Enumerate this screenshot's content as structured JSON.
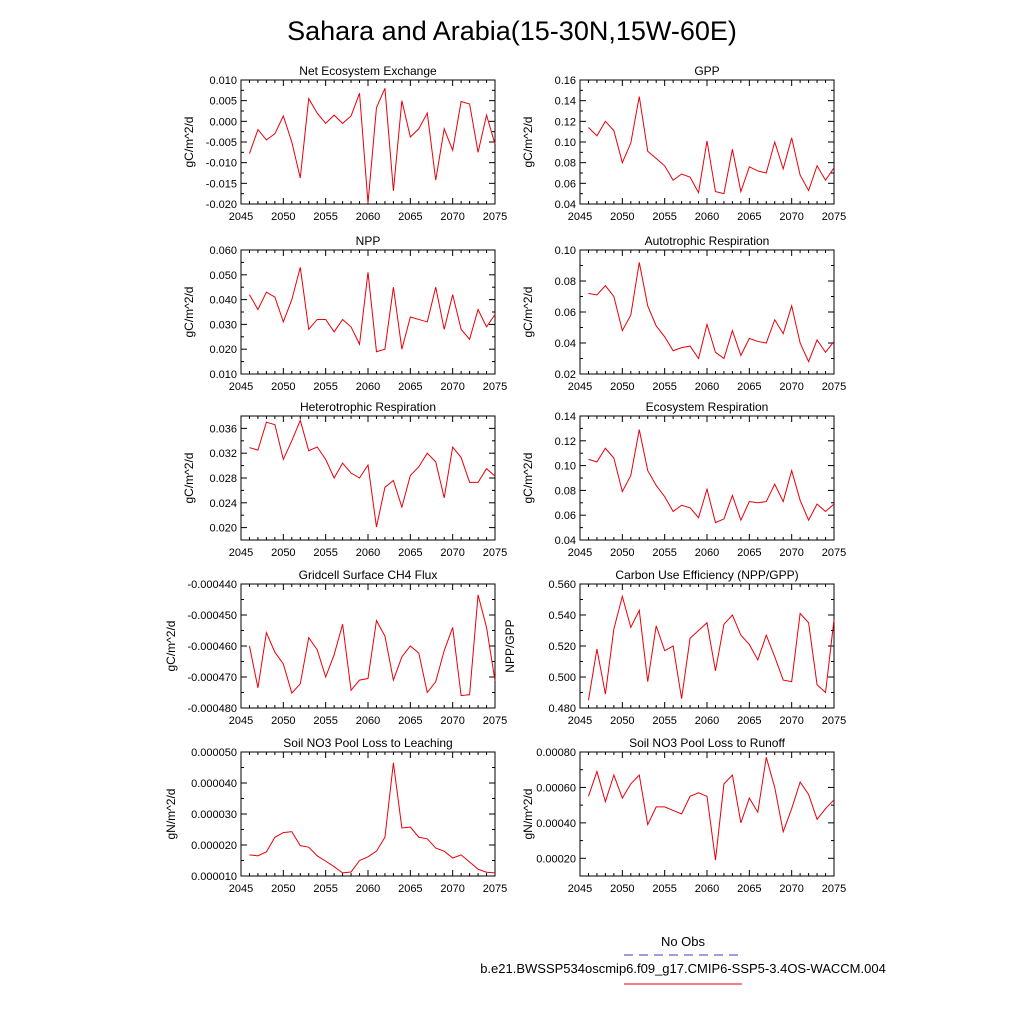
{
  "title": "Sahara and Arabia(15-30N,15W-60E)",
  "legend": {
    "entries": [
      {
        "label": "No Obs",
        "color": "#3b3bcc",
        "dash": true
      },
      {
        "label": "b.e21.BWSSP534oscmip6.f09_g17.CMIP6-SSP5-3.4OS-WACCM.004",
        "color": "#e8000b",
        "dash": false
      }
    ]
  },
  "chart_data": [
    {
      "type": "line",
      "title": "Net Ecosystem Exchange",
      "ylabel": "gC/m^2/d",
      "xlim": [
        2045,
        2075
      ],
      "ylim": [
        -0.02,
        0.01
      ],
      "xticks": [
        2045,
        2050,
        2055,
        2060,
        2065,
        2070,
        2075
      ],
      "yticks": [
        "-0.020",
        "-0.015",
        "-0.010",
        "-0.005",
        "0.000",
        "0.005",
        "0.010"
      ],
      "yminor": 2,
      "color": "#e8000b",
      "x": [
        2046,
        2047,
        2048,
        2049,
        2050,
        2051,
        2052,
        2053,
        2054,
        2055,
        2056,
        2057,
        2058,
        2059,
        2060,
        2061,
        2062,
        2063,
        2064,
        2065,
        2066,
        2067,
        2068,
        2069,
        2070,
        2071,
        2072,
        2073,
        2074,
        2075
      ],
      "y": [
        -0.0078,
        -0.002,
        -0.0045,
        -0.003,
        0.0013,
        -0.005,
        -0.0137,
        0.0055,
        0.002,
        -0.0005,
        0.0015,
        -0.0005,
        0.0013,
        0.0068,
        -0.0198,
        0.0033,
        0.008,
        -0.0168,
        0.005,
        -0.0038,
        -0.0018,
        0.002,
        -0.0142,
        -0.0018,
        -0.007,
        0.0048,
        0.0042,
        -0.0075,
        0.0015,
        -0.0055
      ]
    },
    {
      "type": "line",
      "title": "GPP",
      "ylabel": "gC/m^2/d",
      "xlim": [
        2045,
        2075
      ],
      "ylim": [
        0.04,
        0.16
      ],
      "xticks": [
        2045,
        2050,
        2055,
        2060,
        2065,
        2070,
        2075
      ],
      "yticks": [
        "0.04",
        "0.06",
        "0.08",
        "0.10",
        "0.12",
        "0.14",
        "0.16"
      ],
      "yminor": 2,
      "color": "#e8000b",
      "x": [
        2046,
        2047,
        2048,
        2049,
        2050,
        2051,
        2052,
        2053,
        2054,
        2055,
        2056,
        2057,
        2058,
        2059,
        2060,
        2061,
        2062,
        2063,
        2064,
        2065,
        2066,
        2067,
        2068,
        2069,
        2070,
        2071,
        2072,
        2073,
        2074,
        2075
      ],
      "y": [
        0.114,
        0.106,
        0.12,
        0.111,
        0.08,
        0.099,
        0.144,
        0.091,
        0.084,
        0.077,
        0.063,
        0.069,
        0.066,
        0.051,
        0.101,
        0.052,
        0.05,
        0.093,
        0.052,
        0.076,
        0.072,
        0.07,
        0.1,
        0.074,
        0.104,
        0.068,
        0.053,
        0.077,
        0.063,
        0.075
      ]
    },
    {
      "type": "line",
      "title": "NPP",
      "ylabel": "gC/m^2/d",
      "xlim": [
        2045,
        2075
      ],
      "ylim": [
        0.01,
        0.06
      ],
      "xticks": [
        2045,
        2050,
        2055,
        2060,
        2065,
        2070,
        2075
      ],
      "yticks": [
        "0.010",
        "0.020",
        "0.030",
        "0.040",
        "0.050",
        "0.060"
      ],
      "yminor": 2,
      "color": "#e8000b",
      "x": [
        2046,
        2047,
        2048,
        2049,
        2050,
        2051,
        2052,
        2053,
        2054,
        2055,
        2056,
        2057,
        2058,
        2059,
        2060,
        2061,
        2062,
        2063,
        2064,
        2065,
        2066,
        2067,
        2068,
        2069,
        2070,
        2071,
        2072,
        2073,
        2074,
        2075
      ],
      "y": [
        0.042,
        0.036,
        0.043,
        0.041,
        0.031,
        0.04,
        0.053,
        0.028,
        0.032,
        0.032,
        0.027,
        0.032,
        0.029,
        0.022,
        0.051,
        0.019,
        0.02,
        0.045,
        0.02,
        0.033,
        0.032,
        0.031,
        0.045,
        0.028,
        0.042,
        0.028,
        0.024,
        0.036,
        0.029,
        0.034
      ]
    },
    {
      "type": "line",
      "title": "Autotrophic Respiration",
      "ylabel": "gC/m^2/d",
      "xlim": [
        2045,
        2075
      ],
      "ylim": [
        0.02,
        0.1
      ],
      "xticks": [
        2045,
        2050,
        2055,
        2060,
        2065,
        2070,
        2075
      ],
      "yticks": [
        "0.02",
        "0.04",
        "0.06",
        "0.08",
        "0.10"
      ],
      "yminor": 2,
      "color": "#e8000b",
      "x": [
        2046,
        2047,
        2048,
        2049,
        2050,
        2051,
        2052,
        2053,
        2054,
        2055,
        2056,
        2057,
        2058,
        2059,
        2060,
        2061,
        2062,
        2063,
        2064,
        2065,
        2066,
        2067,
        2068,
        2069,
        2070,
        2071,
        2072,
        2073,
        2074,
        2075
      ],
      "y": [
        0.072,
        0.071,
        0.077,
        0.07,
        0.048,
        0.058,
        0.092,
        0.064,
        0.051,
        0.044,
        0.035,
        0.037,
        0.038,
        0.03,
        0.052,
        0.034,
        0.03,
        0.048,
        0.032,
        0.043,
        0.041,
        0.04,
        0.055,
        0.046,
        0.064,
        0.04,
        0.028,
        0.042,
        0.034,
        0.041
      ]
    },
    {
      "type": "line",
      "title": "Heterotrophic Respiration",
      "ylabel": "gC/m^2/d",
      "xlim": [
        2045,
        2075
      ],
      "ylim": [
        0.018,
        0.038
      ],
      "xticks": [
        2045,
        2050,
        2055,
        2060,
        2065,
        2070,
        2075
      ],
      "yticks": [
        {
          "v": 0.02,
          "t": "0.020"
        },
        {
          "v": 0.024,
          "t": "0.024"
        },
        {
          "v": 0.028,
          "t": "0.028"
        },
        {
          "v": 0.032,
          "t": "0.032"
        },
        {
          "v": 0.036,
          "t": "0.036"
        }
      ],
      "yminor": 2,
      "color": "#e8000b",
      "x": [
        2046,
        2047,
        2048,
        2049,
        2050,
        2051,
        2052,
        2053,
        2054,
        2055,
        2056,
        2057,
        2058,
        2059,
        2060,
        2061,
        2062,
        2063,
        2064,
        2065,
        2066,
        2067,
        2068,
        2069,
        2070,
        2071,
        2072,
        2073,
        2074,
        2075
      ],
      "y": [
        0.0329,
        0.0325,
        0.037,
        0.0366,
        0.031,
        0.034,
        0.0373,
        0.0324,
        0.033,
        0.031,
        0.028,
        0.0304,
        0.0288,
        0.028,
        0.0301,
        0.0201,
        0.0265,
        0.0276,
        0.0233,
        0.0284,
        0.0298,
        0.032,
        0.0306,
        0.0248,
        0.033,
        0.0313,
        0.0273,
        0.0273,
        0.0295,
        0.0283
      ]
    },
    {
      "type": "line",
      "title": "Ecosystem Respiration",
      "ylabel": "gC/m^2/d",
      "xlim": [
        2045,
        2075
      ],
      "ylim": [
        0.04,
        0.14
      ],
      "xticks": [
        2045,
        2050,
        2055,
        2060,
        2065,
        2070,
        2075
      ],
      "yticks": [
        "0.04",
        "0.06",
        "0.08",
        "0.10",
        "0.12",
        "0.14"
      ],
      "yminor": 2,
      "color": "#e8000b",
      "x": [
        2046,
        2047,
        2048,
        2049,
        2050,
        2051,
        2052,
        2053,
        2054,
        2055,
        2056,
        2057,
        2058,
        2059,
        2060,
        2061,
        2062,
        2063,
        2064,
        2065,
        2066,
        2067,
        2068,
        2069,
        2070,
        2071,
        2072,
        2073,
        2074,
        2075
      ],
      "y": [
        0.105,
        0.103,
        0.114,
        0.106,
        0.079,
        0.092,
        0.129,
        0.096,
        0.084,
        0.075,
        0.063,
        0.068,
        0.066,
        0.058,
        0.081,
        0.054,
        0.057,
        0.076,
        0.056,
        0.071,
        0.07,
        0.071,
        0.085,
        0.071,
        0.096,
        0.072,
        0.056,
        0.069,
        0.063,
        0.069
      ]
    },
    {
      "type": "line",
      "title": "Gridcell Surface CH4 Flux",
      "ylabel": "gC/m^2/d",
      "xlim": [
        2045,
        2075
      ],
      "ylim": [
        -0.00048,
        -0.00044
      ],
      "xticks": [
        2045,
        2050,
        2055,
        2060,
        2065,
        2070,
        2075
      ],
      "yticks": [
        "-0.000480",
        "-0.000470",
        "-0.000460",
        "-0.000450",
        "-0.000440"
      ],
      "yminor": 2,
      "color": "#e8000b",
      "x": [
        2046,
        2047,
        2048,
        2049,
        2050,
        2051,
        2052,
        2053,
        2054,
        2055,
        2056,
        2057,
        2058,
        2059,
        2060,
        2061,
        2062,
        2063,
        2064,
        2065,
        2066,
        2067,
        2068,
        2069,
        2070,
        2071,
        2072,
        2073,
        2074,
        2075
      ],
      "y": [
        -0.00046,
        -0.0004735,
        -0.0004557,
        -0.000462,
        -0.0004658,
        -0.0004752,
        -0.0004722,
        -0.0004573,
        -0.0004612,
        -0.00047,
        -0.0004628,
        -0.000453,
        -0.0004743,
        -0.000471,
        -0.0004705,
        -0.0004518,
        -0.0004568,
        -0.000471,
        -0.0004635,
        -0.00046,
        -0.0004623,
        -0.000475,
        -0.0004715,
        -0.0004615,
        -0.000454,
        -0.000476,
        -0.0004757,
        -0.0004435,
        -0.000454,
        -0.0004712
      ]
    },
    {
      "type": "line",
      "title": "Carbon Use Efficiency (NPP/GPP)",
      "ylabel": "NPP/GPP",
      "xlim": [
        2045,
        2075
      ],
      "ylim": [
        0.48,
        0.56
      ],
      "xticks": [
        2045,
        2050,
        2055,
        2060,
        2065,
        2070,
        2075
      ],
      "yticks": [
        "0.480",
        "0.500",
        "0.520",
        "0.540",
        "0.560"
      ],
      "yminor": 2,
      "color": "#e8000b",
      "x": [
        2046,
        2047,
        2048,
        2049,
        2050,
        2051,
        2052,
        2053,
        2054,
        2055,
        2056,
        2057,
        2058,
        2059,
        2060,
        2061,
        2062,
        2063,
        2064,
        2065,
        2066,
        2067,
        2068,
        2069,
        2070,
        2071,
        2072,
        2073,
        2074,
        2075
      ],
      "y": [
        0.485,
        0.518,
        0.489,
        0.531,
        0.552,
        0.532,
        0.543,
        0.497,
        0.533,
        0.517,
        0.52,
        0.486,
        0.525,
        0.53,
        0.535,
        0.504,
        0.534,
        0.54,
        0.527,
        0.521,
        0.511,
        0.527,
        0.513,
        0.498,
        0.497,
        0.541,
        0.535,
        0.495,
        0.49,
        0.537
      ]
    },
    {
      "type": "line",
      "title": "Soil NO3 Pool Loss to Leaching",
      "ylabel": "gN/m^2/d",
      "xlim": [
        2045,
        2075
      ],
      "ylim": [
        1e-05,
        5e-05
      ],
      "xticks": [
        2045,
        2050,
        2055,
        2060,
        2065,
        2070,
        2075
      ],
      "yticks": [
        "0.000010",
        "0.000020",
        "0.000030",
        "0.000040",
        "0.000050"
      ],
      "yminor": 2,
      "color": "#e8000b",
      "x": [
        2046,
        2047,
        2048,
        2049,
        2050,
        2051,
        2052,
        2053,
        2054,
        2055,
        2056,
        2057,
        2058,
        2059,
        2060,
        2061,
        2062,
        2063,
        2064,
        2065,
        2066,
        2067,
        2068,
        2069,
        2070,
        2071,
        2072,
        2073,
        2074,
        2075
      ],
      "y": [
        1.68e-05,
        1.65e-05,
        1.78e-05,
        2.25e-05,
        2.4e-05,
        2.43e-05,
        1.98e-05,
        1.93e-05,
        1.65e-05,
        1.48e-05,
        1.3e-05,
        1.1e-05,
        1.13e-05,
        1.5e-05,
        1.62e-05,
        1.8e-05,
        2.25e-05,
        4.65e-05,
        2.55e-05,
        2.58e-05,
        2.25e-05,
        2.2e-05,
        1.9e-05,
        1.8e-05,
        1.58e-05,
        1.68e-05,
        1.45e-05,
        1.22e-05,
        1.12e-05,
        1.1e-05
      ]
    },
    {
      "type": "line",
      "title": "Soil NO3 Pool Loss to Runoff",
      "ylabel": "gN/m^2/d",
      "xlim": [
        2045,
        2075
      ],
      "ylim": [
        0.0001,
        0.0008
      ],
      "xticks": [
        2045,
        2050,
        2055,
        2060,
        2065,
        2070,
        2075
      ],
      "yticks": [
        {
          "v": 0.0002,
          "t": "0.00020"
        },
        {
          "v": 0.0004,
          "t": "0.00040"
        },
        {
          "v": 0.0006,
          "t": "0.00060"
        },
        {
          "v": 0.0008,
          "t": "0.00080"
        }
      ],
      "yminor": 2,
      "color": "#e8000b",
      "x": [
        2046,
        2047,
        2048,
        2049,
        2050,
        2051,
        2052,
        2053,
        2054,
        2055,
        2056,
        2057,
        2058,
        2059,
        2060,
        2061,
        2062,
        2063,
        2064,
        2065,
        2066,
        2067,
        2068,
        2069,
        2070,
        2071,
        2072,
        2073,
        2074,
        2075
      ],
      "y": [
        0.00055,
        0.00069,
        0.00052,
        0.00067,
        0.00054,
        0.00062,
        0.00067,
        0.00039,
        0.00049,
        0.00049,
        0.00047,
        0.00045,
        0.00055,
        0.00057,
        0.00055,
        0.00019,
        0.00062,
        0.00067,
        0.0004,
        0.00054,
        0.00046,
        0.00077,
        0.0006,
        0.00035,
        0.00048,
        0.00063,
        0.00056,
        0.00042,
        0.00048,
        0.00053
      ]
    }
  ]
}
